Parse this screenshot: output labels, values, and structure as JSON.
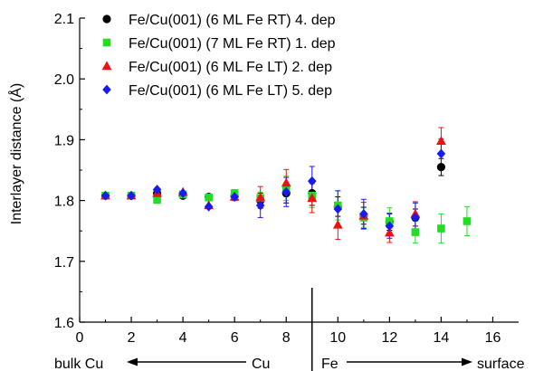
{
  "chart_data": {
    "type": "scatter",
    "title": "",
    "xlabel": "",
    "ylabel": "Interlayer distance (Å)",
    "xlim": [
      0,
      17
    ],
    "ylim": [
      1.6,
      2.1
    ],
    "xticks": [
      0,
      2,
      4,
      6,
      8,
      10,
      12,
      14,
      16
    ],
    "yticks": [
      1.6,
      1.7,
      1.8,
      1.9,
      2.0,
      2.1
    ],
    "xtick_labels": [
      "0",
      "2",
      "4",
      "6",
      "8",
      "10",
      "12",
      "14",
      "16"
    ],
    "ytick_labels": [
      "1.6",
      "1.7",
      "1.8",
      "1.9",
      "2.0",
      "2.1"
    ],
    "grid": false,
    "legend_position": "top-left",
    "divider_x": 9,
    "annotations": {
      "left_end": "bulk Cu",
      "left_region": "Cu",
      "right_region": "Fe",
      "right_end": "surface"
    },
    "series": [
      {
        "name": "Fe/Cu(001) (6 ML Fe RT) 4. dep",
        "marker": "circle",
        "color": "#000000",
        "x": [
          1,
          2,
          3,
          4,
          5,
          6,
          7,
          8,
          9,
          10,
          11,
          12,
          13,
          14
        ],
        "y": [
          1.808,
          1.808,
          1.812,
          1.808,
          1.806,
          1.808,
          1.8,
          1.812,
          1.812,
          1.79,
          1.775,
          1.765,
          1.772,
          1.855
        ],
        "err": [
          0,
          0,
          0,
          0,
          0,
          0.006,
          0.012,
          0.016,
          0.02,
          0.016,
          0.014,
          0.014,
          0.014,
          0.014
        ]
      },
      {
        "name": "Fe/Cu(001) (7 ML Fe RT) 1. dep",
        "marker": "square",
        "color": "#22dd22",
        "x": [
          1,
          2,
          3,
          4,
          5,
          6,
          7,
          8,
          9,
          10,
          11,
          12,
          13,
          14,
          15
        ],
        "y": [
          1.808,
          1.808,
          1.801,
          1.81,
          1.805,
          1.812,
          1.804,
          1.82,
          1.808,
          1.792,
          1.772,
          1.766,
          1.748,
          1.754,
          1.766
        ],
        "err": [
          0,
          0,
          0,
          0,
          0,
          0.006,
          0.01,
          0.02,
          0.02,
          0.024,
          0.016,
          0.022,
          0.018,
          0.024,
          0.024
        ]
      },
      {
        "name": "Fe/Cu(001) (6 ML Fe LT) 2. dep",
        "marker": "triangle",
        "color": "#ee1111",
        "x": [
          1,
          2,
          3,
          4,
          5,
          6,
          7,
          8,
          9,
          10,
          11,
          12,
          13,
          14
        ],
        "y": [
          1.808,
          1.808,
          1.812,
          1.814,
          1.792,
          1.806,
          1.805,
          1.829,
          1.804,
          1.76,
          1.775,
          1.747,
          1.778,
          1.898
        ],
        "err": [
          0,
          0,
          0,
          0,
          0,
          0.006,
          0.018,
          0.022,
          0.024,
          0.024,
          0.022,
          0.016,
          0.02,
          0.022
        ]
      },
      {
        "name": "Fe/Cu(001) (6 ML Fe LT) 5. dep",
        "marker": "diamond",
        "color": "#1a1aee",
        "x": [
          1,
          2,
          3,
          4,
          5,
          6,
          7,
          8,
          9,
          10,
          11,
          12,
          13,
          14
        ],
        "y": [
          1.808,
          1.808,
          1.818,
          1.812,
          1.79,
          1.806,
          1.792,
          1.814,
          1.832,
          1.786,
          1.778,
          1.758,
          1.772,
          1.877
        ],
        "err": [
          0,
          0,
          0,
          0,
          0,
          0.006,
          0.02,
          0.024,
          0.024,
          0.03,
          0.024,
          0.02,
          0.024,
          0.024
        ]
      }
    ]
  }
}
